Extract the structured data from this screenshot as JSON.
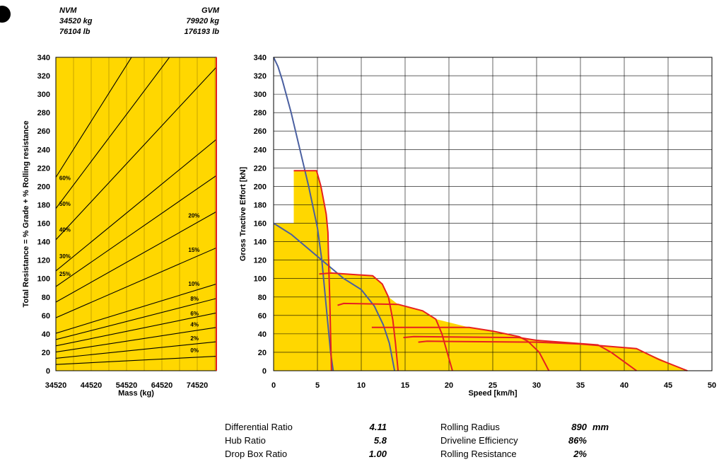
{
  "header": {
    "nvm": {
      "label": "NVM",
      "kg": "34520 kg",
      "lb": "76104 lb"
    },
    "gvm": {
      "label": "GVM",
      "kg": "79920 kg",
      "lb": "176193 lb"
    }
  },
  "chart_data": [
    {
      "type": "line",
      "ylabel": "Total Resistance = % Grade + % Rolling resistance",
      "xlabel": "Mass (kg)",
      "xlim": [
        34520,
        79920
      ],
      "ylim": [
        0,
        340
      ],
      "xticks": [
        "34520",
        "44520",
        "54520",
        "64520",
        "74520"
      ],
      "yticks": [
        "0",
        "20",
        "40",
        "60",
        "80",
        "100",
        "120",
        "140",
        "160",
        "180",
        "200",
        "220",
        "240",
        "260",
        "280",
        "300",
        "320",
        "340"
      ],
      "grid": true,
      "background": "#FFD700",
      "line_color": "#000000",
      "series": [
        {
          "name": "0%",
          "values": [
            [
              34520,
              6.8
            ],
            [
              79920,
              15.7
            ]
          ]
        },
        {
          "name": "2%",
          "values": [
            [
              34520,
              13.5
            ],
            [
              79920,
              31.4
            ]
          ]
        },
        {
          "name": "4%",
          "values": [
            [
              34520,
              20.3
            ],
            [
              79920,
              47.0
            ]
          ]
        },
        {
          "name": "6%",
          "values": [
            [
              34520,
              27.0
            ],
            [
              79920,
              62.7
            ]
          ]
        },
        {
          "name": "8%",
          "values": [
            [
              34520,
              33.8
            ],
            [
              79920,
              78.4
            ]
          ]
        },
        {
          "name": "10%",
          "values": [
            [
              34520,
              40.6
            ],
            [
              79920,
              94.1
            ]
          ]
        },
        {
          "name": "15%",
          "values": [
            [
              34520,
              57.5
            ],
            [
              79920,
              133.3
            ]
          ]
        },
        {
          "name": "20%",
          "values": [
            [
              34520,
              74.4
            ],
            [
              79920,
              172.5
            ]
          ]
        },
        {
          "name": "25%",
          "values": [
            [
              34520,
              91.3
            ],
            [
              79920,
              211.7
            ]
          ]
        },
        {
          "name": "30%",
          "values": [
            [
              34520,
              108.3
            ],
            [
              79920,
              250.9
            ]
          ]
        },
        {
          "name": "40%",
          "values": [
            [
              34520,
              142.1
            ],
            [
              79920,
              329.3
            ]
          ]
        },
        {
          "name": "50%",
          "values": [
            [
              34520,
              176.0
            ],
            [
              79920,
              407.7
            ]
          ]
        },
        {
          "name": "60%",
          "values": [
            [
              34520,
              209.8
            ],
            [
              79920,
              486.1
            ]
          ]
        }
      ],
      "labels": [
        {
          "text": "60%",
          "x": 35500,
          "y": 207
        },
        {
          "text": "50%",
          "x": 35500,
          "y": 179
        },
        {
          "text": "40%",
          "x": 35500,
          "y": 151
        },
        {
          "text": "30%",
          "x": 35500,
          "y": 122
        },
        {
          "text": "25%",
          "x": 35500,
          "y": 103
        },
        {
          "text": "20%",
          "x": 72000,
          "y": 166
        },
        {
          "text": "15%",
          "x": 72000,
          "y": 129
        },
        {
          "text": "10%",
          "x": 72000,
          "y": 92
        },
        {
          "text": "8%",
          "x": 72600,
          "y": 76
        },
        {
          "text": "6%",
          "x": 72600,
          "y": 60
        },
        {
          "text": "4%",
          "x": 72600,
          "y": 48
        },
        {
          "text": "2%",
          "x": 72600,
          "y": 33
        },
        {
          "text": "0%",
          "x": 72600,
          "y": 20
        }
      ]
    },
    {
      "type": "line",
      "ylabel": "Gross Tractive Effort [kN]",
      "xlabel": "Speed [km/h]",
      "xlim": [
        0,
        50
      ],
      "ylim": [
        0,
        340
      ],
      "xticks": [
        "0",
        "5",
        "10",
        "15",
        "20",
        "25",
        "30",
        "35",
        "40",
        "45",
        "50"
      ],
      "yticks": [
        "0",
        "20",
        "40",
        "60",
        "80",
        "100",
        "120",
        "140",
        "160",
        "180",
        "200",
        "220",
        "240",
        "260",
        "280",
        "300",
        "320",
        "340"
      ],
      "grid": true,
      "fill_color": "#FFD700",
      "envelope": [
        [
          0,
          340
        ],
        [
          0,
          160
        ],
        [
          2.3,
          160
        ],
        [
          2.3,
          217
        ],
        [
          4.9,
          217
        ],
        [
          5.4,
          200
        ],
        [
          6.0,
          170
        ],
        [
          6.4,
          117
        ],
        [
          6.6,
          106
        ],
        [
          11.3,
          103
        ],
        [
          12.4,
          94
        ],
        [
          13.1,
          80
        ],
        [
          14.2,
          72
        ],
        [
          17,
          65
        ],
        [
          18.5,
          56
        ],
        [
          22.3,
          47
        ],
        [
          25,
          43
        ],
        [
          28,
          37
        ],
        [
          30,
          33
        ],
        [
          35,
          29
        ],
        [
          39,
          26
        ],
        [
          41.4,
          24
        ],
        [
          47.2,
          0
        ]
      ],
      "series": [
        {
          "name": "",
          "color": "#4A5FA0",
          "values": [
            [
              0,
              340
            ],
            [
              0.5,
              330
            ],
            [
              1,
              315
            ],
            [
              2,
              280
            ],
            [
              3,
              240
            ],
            [
              4,
              200
            ],
            [
              5,
              155
            ],
            [
              5.5,
              120
            ],
            [
              6,
              70
            ],
            [
              6.5,
              20
            ],
            [
              6.8,
              0
            ]
          ]
        },
        {
          "name": "",
          "color": "#4A5FA0",
          "values": [
            [
              0,
              160
            ],
            [
              2,
              148
            ],
            [
              4,
              132
            ],
            [
              6,
              116
            ],
            [
              8,
              100
            ],
            [
              10,
              88
            ],
            [
              11.5,
              70
            ],
            [
              12.5,
              50
            ],
            [
              13.2,
              30
            ],
            [
              13.8,
              0
            ]
          ]
        },
        {
          "name": "",
          "color": "#E62020",
          "values": [
            [
              2.3,
              217
            ],
            [
              4.9,
              217
            ],
            [
              5.4,
              200
            ],
            [
              6.0,
              170
            ],
            [
              6.2,
              150
            ],
            [
              6.3,
              110
            ],
            [
              6.4,
              80
            ],
            [
              6.5,
              40
            ],
            [
              6.6,
              0
            ]
          ]
        },
        {
          "name": "",
          "color": "#E62020",
          "values": [
            [
              5.2,
              105
            ],
            [
              6.6,
              106
            ],
            [
              11.3,
              103
            ],
            [
              12.4,
              94
            ],
            [
              13.1,
              80
            ],
            [
              13.6,
              55
            ],
            [
              13.9,
              30
            ],
            [
              14.2,
              0
            ]
          ]
        },
        {
          "name": "",
          "color": "#E62020",
          "values": [
            [
              7.3,
              71
            ],
            [
              8,
              73
            ],
            [
              14.2,
              72
            ],
            [
              17,
              65
            ],
            [
              18.5,
              56
            ],
            [
              19.2,
              40
            ],
            [
              20.4,
              0
            ]
          ]
        },
        {
          "name": "",
          "color": "#E62020",
          "values": [
            [
              11.2,
              47
            ],
            [
              22.3,
              47
            ],
            [
              25,
              43
            ],
            [
              28,
              37
            ],
            [
              29,
              32
            ],
            [
              30.3,
              20
            ],
            [
              31.4,
              0
            ]
          ]
        },
        {
          "name": "",
          "color": "#E62020",
          "values": [
            [
              14.8,
              36
            ],
            [
              16,
              37
            ],
            [
              28,
              36
            ],
            [
              30,
              33
            ],
            [
              37,
              28
            ],
            [
              38.5,
              20
            ],
            [
              41.4,
              0
            ]
          ]
        },
        {
          "name": "",
          "color": "#E62020",
          "values": [
            [
              16.5,
              31
            ],
            [
              17.5,
              32
            ],
            [
              30,
              31
            ],
            [
              35,
              29
            ],
            [
              41.4,
              24
            ],
            [
              44,
              12
            ],
            [
              47.2,
              0
            ]
          ]
        }
      ]
    }
  ],
  "specs": {
    "differential_ratio": {
      "label": "Differential Ratio",
      "value": "4.11"
    },
    "hub_ratio": {
      "label": "Hub Ratio",
      "value": "5.8"
    },
    "drop_box_ratio": {
      "label": "Drop Box Ratio",
      "value": "1.00"
    },
    "rolling_radius": {
      "label": "Rolling Radius",
      "value": "890",
      "unit": "mm"
    },
    "driveline_efficiency": {
      "label": "Driveline Efficiency",
      "value": "86%"
    },
    "rolling_resistance": {
      "label": "Rolling Resistance",
      "value": "2%"
    }
  }
}
